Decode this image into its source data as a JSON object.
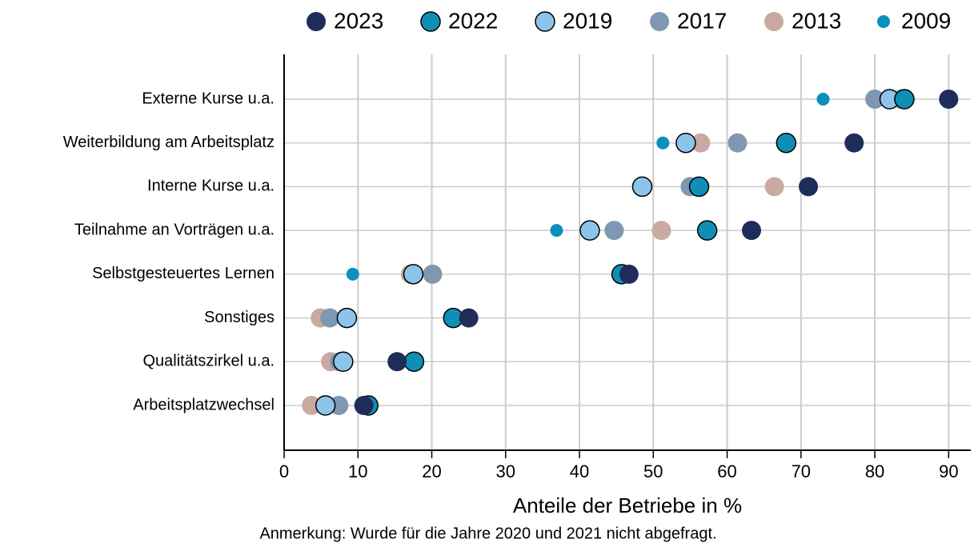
{
  "chart_data": {
    "type": "dot",
    "x_label": "Anteile der Betriebe in %",
    "note": "Anmerkung: Wurde für die Jahre 2020 und 2021 nicht abgefragt.",
    "categories": [
      "Externe Kurse u.a.",
      "Weiterbildung am Arbeitsplatz",
      "Interne Kurse u.a.",
      "Teilnahme an Vorträgen u.a.",
      "Selbstgesteuertes Lernen",
      "Sonstiges",
      "Qualitätszirkel u.a.",
      "Arbeitsplatzwechsel"
    ],
    "series": [
      {
        "name": "2023",
        "color": "#1f2d5a",
        "values": [
          90,
          77.2,
          71,
          63.3,
          46.7,
          25,
          15.3,
          10.8
        ]
      },
      {
        "name": "2022",
        "color": "#0f8fb5",
        "values": [
          84,
          68,
          56.2,
          57.3,
          45.7,
          22.9,
          17.6,
          11.4
        ]
      },
      {
        "name": "2019",
        "color": "#8cc4ec",
        "values": [
          82,
          54.4,
          48.5,
          41.4,
          17.5,
          8.5,
          8,
          5.6
        ]
      },
      {
        "name": "2017",
        "color": "#7f97b0",
        "values": [
          80,
          61.4,
          55,
          44.7,
          20.1,
          6.2,
          7.5,
          7.4
        ]
      },
      {
        "name": "2013",
        "color": "#c9a9a1",
        "values": [
          83.5,
          56.4,
          66.4,
          51.1,
          17.1,
          4.9,
          6.3,
          3.7
        ]
      },
      {
        "name": "2009",
        "color": "#0b8fbf",
        "values": [
          73,
          51.3,
          null,
          36.9,
          9.3,
          null,
          null,
          null
        ]
      }
    ],
    "xlim": [
      0,
      93
    ],
    "xticks": [
      0,
      10,
      20,
      30,
      40,
      50,
      60,
      70,
      80,
      90
    ],
    "grid": true
  }
}
